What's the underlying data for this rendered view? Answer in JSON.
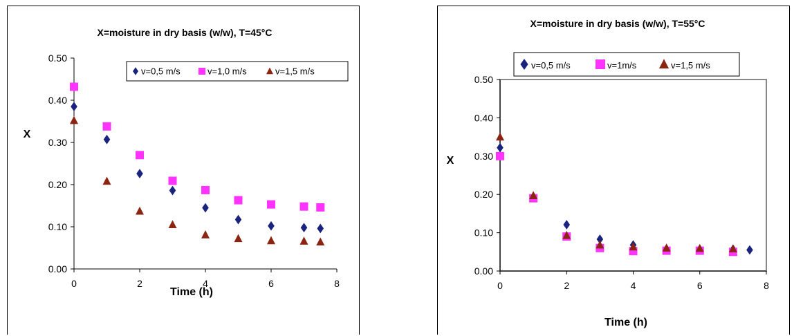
{
  "colors": {
    "series_0": "#1a237e",
    "series_1": "#ff33ff",
    "series_2": "#8b2512"
  },
  "chart_data": [
    {
      "type": "scatter",
      "title": "X=moisture in dry basis (w/w), T=45°C",
      "xlabel": "Time (h)",
      "ylabel": "X",
      "xlim": [
        0,
        8
      ],
      "ylim": [
        0,
        0.5
      ],
      "x_ticks": [
        "0",
        "2",
        "4",
        "6",
        "8"
      ],
      "y_ticks": [
        "0.00",
        "0.10",
        "0.20",
        "0.30",
        "0.40",
        "0.50"
      ],
      "grid": false,
      "legend_position": "top-right",
      "series": [
        {
          "name": "v=0,5 m/s",
          "marker": "diamond",
          "x": [
            0,
            1,
            2,
            3,
            4,
            5,
            6,
            7,
            7.5
          ],
          "y": [
            0.385,
            0.307,
            0.226,
            0.186,
            0.145,
            0.117,
            0.102,
            0.098,
            0.096
          ]
        },
        {
          "name": "v=1,0 m/s",
          "marker": "square",
          "x": [
            0,
            1,
            2,
            3,
            4,
            5,
            6,
            7,
            7.5
          ],
          "y": [
            0.432,
            0.338,
            0.27,
            0.209,
            0.187,
            0.163,
            0.153,
            0.148,
            0.146
          ]
        },
        {
          "name": "v=1,5 m/s",
          "marker": "triangle",
          "x": [
            0,
            1,
            2,
            3,
            4,
            5,
            6,
            7,
            7.5
          ],
          "y": [
            0.352,
            0.208,
            0.137,
            0.105,
            0.081,
            0.072,
            0.067,
            0.066,
            0.064
          ]
        }
      ]
    },
    {
      "type": "scatter",
      "title": "X=moisture in dry basis (w/w), T=55°C",
      "xlabel": "Time (h)",
      "ylabel": "X",
      "xlim": [
        0,
        8
      ],
      "ylim": [
        0,
        0.5
      ],
      "x_ticks": [
        "0",
        "2",
        "4",
        "6",
        "8"
      ],
      "y_ticks": [
        "0.00",
        "0.10",
        "0.20",
        "0.30",
        "0.40",
        "0.50"
      ],
      "grid": false,
      "legend_position": "top",
      "series": [
        {
          "name": "v=0,5 m/s",
          "marker": "diamond",
          "x": [
            0,
            1,
            2,
            3,
            4,
            5,
            6,
            7,
            7.5
          ],
          "y": [
            0.322,
            0.193,
            0.121,
            0.083,
            0.068,
            0.058,
            0.057,
            0.057,
            0.055
          ]
        },
        {
          "name": "v=1m/s",
          "marker": "square",
          "x": [
            0,
            1,
            2,
            3,
            4,
            5,
            6,
            7
          ],
          "y": [
            0.3,
            0.19,
            0.09,
            0.06,
            0.052,
            0.053,
            0.053,
            0.05
          ]
        },
        {
          "name": "v=1,5 m/s",
          "marker": "triangle",
          "x": [
            0,
            1,
            2,
            3,
            4,
            5,
            6,
            7
          ],
          "y": [
            0.35,
            0.197,
            0.093,
            0.068,
            0.063,
            0.06,
            0.059,
            0.058
          ]
        }
      ]
    }
  ]
}
